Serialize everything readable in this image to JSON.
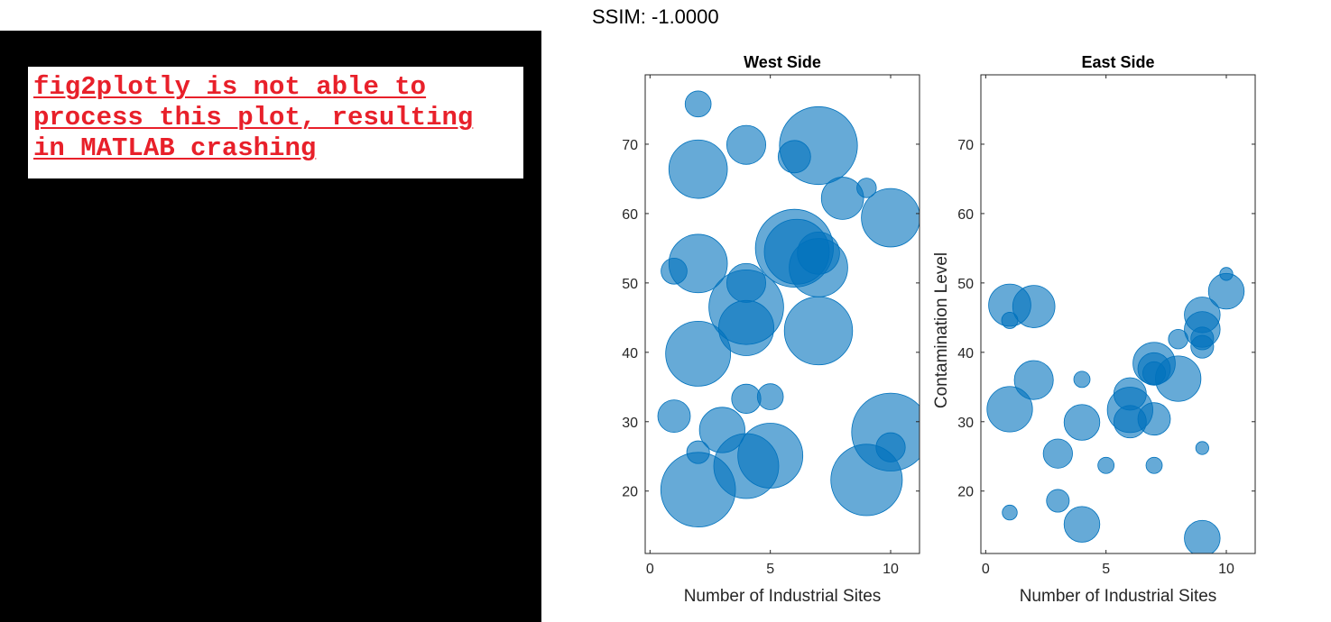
{
  "error_message": {
    "lines": [
      "fig2plotly is not able to",
      "process this plot, resulting",
      "in MATLAB crashing"
    ]
  },
  "ssim_label": "SSIM: -1.0000",
  "colors": {
    "bubble_fill": "#0072bd",
    "bubble_edge": "#0072bd",
    "error_text": "#e8202a",
    "panel": "#000000"
  },
  "chart_data": [
    {
      "type": "scatter",
      "title": "West Side",
      "xlabel": "Number of Industrial Sites",
      "ylabel": "",
      "xlim": [
        -0.2,
        11.2
      ],
      "ylim": [
        11,
        80
      ],
      "xticks": [
        0,
        5,
        10
      ],
      "yticks": [
        20,
        30,
        40,
        50,
        60,
        70
      ],
      "marker_alpha": 0.6,
      "points": [
        {
          "x": 2,
          "y": 75.8,
          "s": 4
        },
        {
          "x": 4,
          "y": 69.9,
          "s": 6
        },
        {
          "x": 7,
          "y": 69.8,
          "s": 12
        },
        {
          "x": 6,
          "y": 68.2,
          "s": 5
        },
        {
          "x": 2,
          "y": 66.4,
          "s": 9
        },
        {
          "x": 9,
          "y": 63.7,
          "s": 3
        },
        {
          "x": 8,
          "y": 62.2,
          "s": 6.5
        },
        {
          "x": 10,
          "y": 59.4,
          "s": 9
        },
        {
          "x": 6,
          "y": 55.0,
          "s": 12
        },
        {
          "x": 6.1,
          "y": 54.5,
          "s": 10
        },
        {
          "x": 7,
          "y": 54.3,
          "s": 6.5
        },
        {
          "x": 7,
          "y": 52.2,
          "s": 9
        },
        {
          "x": 2,
          "y": 52.8,
          "s": 9
        },
        {
          "x": 1,
          "y": 51.7,
          "s": 4
        },
        {
          "x": 4,
          "y": 50.0,
          "s": 6
        },
        {
          "x": 4,
          "y": 46.5,
          "s": 11.5
        },
        {
          "x": 4,
          "y": 43.5,
          "s": 8.5
        },
        {
          "x": 7,
          "y": 43.1,
          "s": 10.5
        },
        {
          "x": 2,
          "y": 39.8,
          "s": 10
        },
        {
          "x": 4,
          "y": 33.3,
          "s": 4.5
        },
        {
          "x": 5,
          "y": 33.6,
          "s": 4
        },
        {
          "x": 1,
          "y": 30.8,
          "s": 5
        },
        {
          "x": 3,
          "y": 28.8,
          "s": 7
        },
        {
          "x": 10,
          "y": 28.5,
          "s": 12
        },
        {
          "x": 10,
          "y": 26.3,
          "s": 4.5
        },
        {
          "x": 2,
          "y": 25.6,
          "s": 3.5
        },
        {
          "x": 5,
          "y": 25.1,
          "s": 10
        },
        {
          "x": 4,
          "y": 23.6,
          "s": 10
        },
        {
          "x": 9,
          "y": 21.6,
          "s": 11
        },
        {
          "x": 2,
          "y": 20.2,
          "s": 11.5
        }
      ]
    },
    {
      "type": "scatter",
      "title": "East Side",
      "xlabel": "Number of Industrial Sites",
      "ylabel": "Contamination Level",
      "xlim": [
        -0.2,
        11.2
      ],
      "ylim": [
        11,
        80
      ],
      "xticks": [
        0,
        5,
        10
      ],
      "yticks": [
        20,
        30,
        40,
        50,
        60,
        70
      ],
      "marker_alpha": 0.6,
      "points": [
        {
          "x": 10,
          "y": 51.3,
          "s": 2
        },
        {
          "x": 10,
          "y": 48.8,
          "s": 5.5
        },
        {
          "x": 1,
          "y": 46.8,
          "s": 6.5
        },
        {
          "x": 2,
          "y": 46.6,
          "s": 6.5
        },
        {
          "x": 9,
          "y": 45.4,
          "s": 5.5
        },
        {
          "x": 1,
          "y": 44.6,
          "s": 2.5
        },
        {
          "x": 9,
          "y": 43.3,
          "s": 5.5
        },
        {
          "x": 9,
          "y": 42.0,
          "s": 3.5
        },
        {
          "x": 8,
          "y": 41.9,
          "s": 3
        },
        {
          "x": 9,
          "y": 40.8,
          "s": 3.5
        },
        {
          "x": 7,
          "y": 38.4,
          "s": 6.5
        },
        {
          "x": 7,
          "y": 37.6,
          "s": 5
        },
        {
          "x": 7,
          "y": 37.0,
          "s": 3.5
        },
        {
          "x": 8,
          "y": 36.2,
          "s": 7
        },
        {
          "x": 4,
          "y": 36.1,
          "s": 2.5
        },
        {
          "x": 2,
          "y": 36.0,
          "s": 6
        },
        {
          "x": 6,
          "y": 34.0,
          "s": 5
        },
        {
          "x": 6,
          "y": 31.7,
          "s": 7
        },
        {
          "x": 1,
          "y": 31.8,
          "s": 7
        },
        {
          "x": 6,
          "y": 30.0,
          "s": 5
        },
        {
          "x": 4,
          "y": 29.9,
          "s": 5.5
        },
        {
          "x": 7,
          "y": 30.4,
          "s": 5
        },
        {
          "x": 9,
          "y": 26.2,
          "s": 2
        },
        {
          "x": 3,
          "y": 25.4,
          "s": 4.5
        },
        {
          "x": 5,
          "y": 23.7,
          "s": 2.5
        },
        {
          "x": 7,
          "y": 23.7,
          "s": 2.5
        },
        {
          "x": 3,
          "y": 18.6,
          "s": 3.5
        },
        {
          "x": 1,
          "y": 16.9,
          "s": 2.3
        },
        {
          "x": 4,
          "y": 15.2,
          "s": 5.5
        },
        {
          "x": 9,
          "y": 13.2,
          "s": 5.5
        }
      ]
    }
  ]
}
